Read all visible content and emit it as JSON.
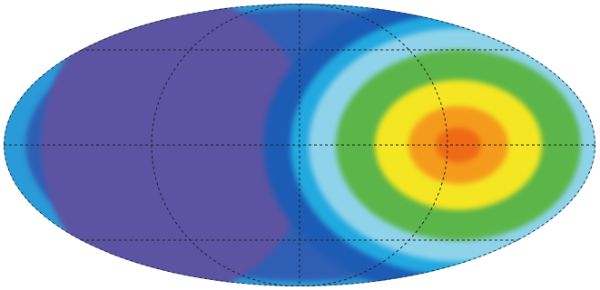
{
  "chart_data": {
    "type": "mollweide-map",
    "background_colors": [
      "#2a9ad8",
      "#2f5fb4",
      "#5b52a3"
    ],
    "level_colors": [
      "#1f5bb4",
      "#22a9e0",
      "#8fd3ea",
      "#5cb548",
      "#f4e620",
      "#f59b1e",
      "#ee6a12"
    ],
    "graticule": true,
    "graticule_color": "#222222"
  }
}
